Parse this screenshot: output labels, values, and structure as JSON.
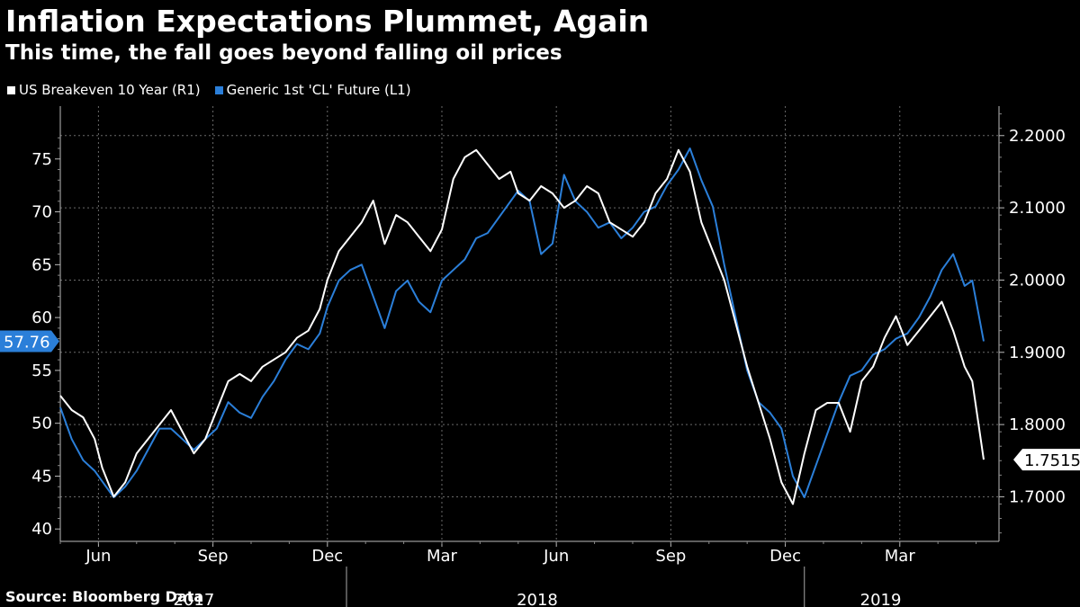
{
  "header": {
    "title": "Inflation Expectations Plummet, Again",
    "subtitle": "This time, the fall goes beyond falling oil prices"
  },
  "footer": {
    "source": "Source: Bloomberg Data"
  },
  "colors": {
    "breakeven": "#ffffff",
    "oil": "#2b7fd9",
    "grid": "#6a6a6a",
    "background": "#000000"
  },
  "chart_data": {
    "type": "line",
    "title": "Inflation Expectations Plummet, Again",
    "subtitle": "This time, the fall goes beyond falling oil prices",
    "legend": [
      "US Breakeven 10 Year  (R1)",
      "Generic 1st 'CL' Future  (L1)"
    ],
    "legend_position": "top-left",
    "grid": true,
    "x_ticks": [
      "Jun",
      "Sep",
      "Dec",
      "Mar",
      "Jun",
      "Sep",
      "Dec",
      "Mar"
    ],
    "x_tick_months": [
      1,
      4,
      7,
      10,
      13,
      16,
      19,
      22
    ],
    "year_labels": [
      "2017",
      "2018",
      "2019"
    ],
    "year_label_months": [
      3.5,
      12.5,
      21.5
    ],
    "x_range_months": [
      0.0,
      24.6
    ],
    "left_axis": {
      "ylim": [
        39,
        80
      ],
      "ticks": [
        40,
        45,
        50,
        55,
        60,
        65,
        70,
        75
      ]
    },
    "right_axis": {
      "ylim": [
        1.6408,
        2.2408
      ],
      "ticks": [
        "1.7000",
        "1.8000",
        "1.9000",
        "2.0000",
        "2.1000",
        "2.2000"
      ]
    },
    "last_value_labels": {
      "oil": "57.76",
      "breakeven": "1.7515"
    },
    "series": [
      {
        "name": "Generic 1st 'CL' Future",
        "axis": "left",
        "x_months": [
          0.0,
          0.3,
          0.6,
          0.9,
          1.1,
          1.4,
          1.7,
          2.0,
          2.3,
          2.6,
          2.9,
          3.2,
          3.5,
          3.8,
          4.1,
          4.4,
          4.7,
          5.0,
          5.3,
          5.6,
          5.9,
          6.2,
          6.5,
          6.8,
          7.0,
          7.3,
          7.6,
          7.9,
          8.2,
          8.5,
          8.8,
          9.1,
          9.4,
          9.7,
          10.0,
          10.3,
          10.6,
          10.9,
          11.2,
          11.5,
          11.8,
          12.0,
          12.3,
          12.6,
          12.9,
          13.2,
          13.5,
          13.8,
          14.1,
          14.4,
          14.7,
          15.0,
          15.3,
          15.6,
          15.9,
          16.2,
          16.5,
          16.8,
          17.1,
          17.4,
          17.7,
          18.0,
          18.3,
          18.6,
          18.9,
          19.2,
          19.5,
          19.8,
          20.1,
          20.4,
          20.7,
          21.0,
          21.3,
          21.6,
          21.9,
          22.2,
          22.5,
          22.8,
          23.1,
          23.4,
          23.7,
          23.9,
          24.2
        ],
        "values": [
          51.5,
          48.5,
          46.5,
          45.5,
          44.5,
          43.0,
          44.0,
          45.5,
          47.5,
          49.5,
          49.5,
          48.5,
          47.5,
          48.5,
          49.5,
          52.0,
          51.0,
          50.5,
          52.5,
          54.0,
          56.0,
          57.5,
          57.0,
          58.5,
          61.0,
          63.5,
          64.5,
          65.0,
          62.0,
          59.0,
          62.5,
          63.5,
          61.5,
          60.5,
          63.5,
          64.5,
          65.5,
          67.5,
          68.0,
          69.5,
          71.0,
          72.0,
          71.0,
          66.0,
          67.0,
          73.5,
          71.0,
          70.0,
          68.5,
          69.0,
          67.5,
          68.5,
          70.0,
          70.5,
          72.5,
          74.0,
          76.0,
          73.0,
          70.5,
          65.0,
          60.0,
          55.0,
          52.0,
          51.0,
          49.5,
          45.0,
          43.0,
          46.0,
          49.0,
          52.0,
          54.5,
          55.0,
          56.5,
          57.0,
          58.0,
          58.5,
          60.0,
          62.0,
          64.5,
          66.0,
          63.0,
          63.5,
          57.76
        ]
      },
      {
        "name": "US Breakeven 10 Year",
        "axis": "right",
        "x_months": [
          0.0,
          0.3,
          0.6,
          0.9,
          1.1,
          1.4,
          1.7,
          2.0,
          2.3,
          2.6,
          2.9,
          3.2,
          3.5,
          3.8,
          4.1,
          4.4,
          4.7,
          5.0,
          5.3,
          5.6,
          5.9,
          6.2,
          6.5,
          6.8,
          7.0,
          7.3,
          7.6,
          7.9,
          8.2,
          8.5,
          8.8,
          9.1,
          9.4,
          9.7,
          10.0,
          10.3,
          10.6,
          10.9,
          11.2,
          11.5,
          11.8,
          12.0,
          12.3,
          12.6,
          12.9,
          13.2,
          13.5,
          13.8,
          14.1,
          14.4,
          14.7,
          15.0,
          15.3,
          15.6,
          15.9,
          16.2,
          16.5,
          16.8,
          17.1,
          17.4,
          17.7,
          18.0,
          18.3,
          18.6,
          18.9,
          19.2,
          19.5,
          19.8,
          20.1,
          20.4,
          20.7,
          21.0,
          21.3,
          21.6,
          21.9,
          22.2,
          22.5,
          22.8,
          23.1,
          23.4,
          23.7,
          23.9,
          24.2
        ],
        "values": [
          1.84,
          1.82,
          1.81,
          1.78,
          1.74,
          1.7,
          1.72,
          1.76,
          1.78,
          1.8,
          1.82,
          1.79,
          1.76,
          1.78,
          1.82,
          1.86,
          1.87,
          1.86,
          1.88,
          1.89,
          1.9,
          1.92,
          1.93,
          1.96,
          2.0,
          2.04,
          2.06,
          2.08,
          2.11,
          2.05,
          2.09,
          2.08,
          2.06,
          2.04,
          2.07,
          2.14,
          2.17,
          2.18,
          2.16,
          2.14,
          2.15,
          2.12,
          2.11,
          2.13,
          2.12,
          2.1,
          2.11,
          2.13,
          2.12,
          2.08,
          2.07,
          2.06,
          2.08,
          2.12,
          2.14,
          2.18,
          2.15,
          2.08,
          2.04,
          2.0,
          1.94,
          1.88,
          1.83,
          1.78,
          1.72,
          1.69,
          1.76,
          1.82,
          1.83,
          1.83,
          1.79,
          1.86,
          1.88,
          1.92,
          1.95,
          1.91,
          1.93,
          1.95,
          1.97,
          1.93,
          1.88,
          1.86,
          1.7515
        ]
      }
    ]
  }
}
